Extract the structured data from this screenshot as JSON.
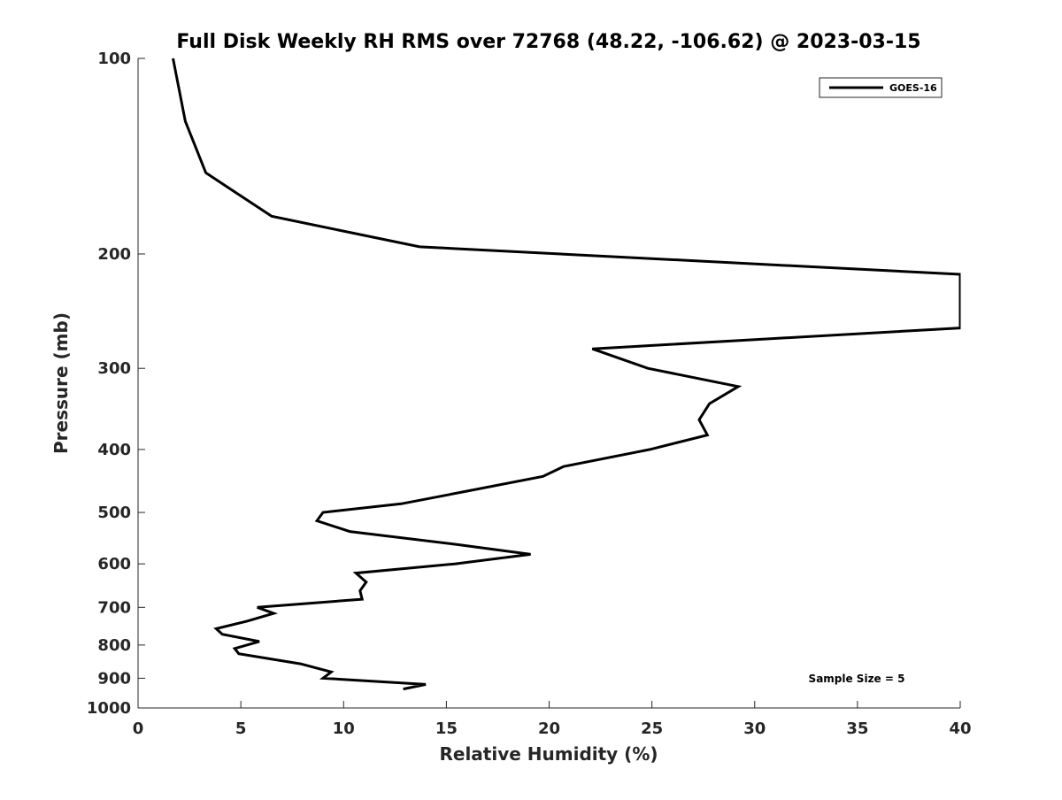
{
  "chart_data": {
    "type": "line",
    "title": "Full Disk Weekly RH RMS over 72768 (48.22, -106.62) @ 2023-03-15",
    "xlabel": "Relative Humidity (%)",
    "ylabel": "Pressure (mb)",
    "xlim": [
      0,
      40
    ],
    "ylim": [
      1000,
      100
    ],
    "yscale": "log",
    "x_ticks": [
      "0",
      "5",
      "10",
      "15",
      "20",
      "25",
      "30",
      "35",
      "40"
    ],
    "y_ticks": [
      "100",
      "200",
      "300",
      "400",
      "500",
      "600",
      "700",
      "800",
      "900",
      "1000"
    ],
    "grid": false,
    "legend": "top-right",
    "annotation": "Sample Size = 5",
    "series": [
      {
        "name": "GOES-16",
        "color": "#000000",
        "points": [
          [
            1.7,
            100
          ],
          [
            2.3,
            125
          ],
          [
            3.3,
            150
          ],
          [
            6.5,
            175
          ],
          [
            13.7,
            195
          ],
          [
            40,
            215
          ],
          [
            40,
            260
          ],
          [
            22.1,
            280
          ],
          [
            24.8,
            300
          ],
          [
            29.2,
            320
          ],
          [
            27.8,
            340
          ],
          [
            27.3,
            360
          ],
          [
            27.7,
            380
          ],
          [
            24.9,
            400
          ],
          [
            20.7,
            425
          ],
          [
            19.7,
            440
          ],
          [
            15.8,
            465
          ],
          [
            12.8,
            485
          ],
          [
            9.0,
            500
          ],
          [
            8.7,
            515
          ],
          [
            10.3,
            535
          ],
          [
            15.5,
            560
          ],
          [
            19.1,
            580
          ],
          [
            15.4,
            600
          ],
          [
            10.6,
            620
          ],
          [
            11.1,
            640
          ],
          [
            10.8,
            660
          ],
          [
            10.9,
            680
          ],
          [
            5.8,
            700
          ],
          [
            6.6,
            715
          ],
          [
            5.3,
            735
          ],
          [
            3.8,
            755
          ],
          [
            4.1,
            770
          ],
          [
            5.9,
            790
          ],
          [
            4.7,
            810
          ],
          [
            4.9,
            825
          ],
          [
            7.9,
            855
          ],
          [
            9.4,
            880
          ],
          [
            9.0,
            900
          ],
          [
            14.0,
            920
          ],
          [
            12.9,
            935
          ]
        ]
      }
    ]
  }
}
